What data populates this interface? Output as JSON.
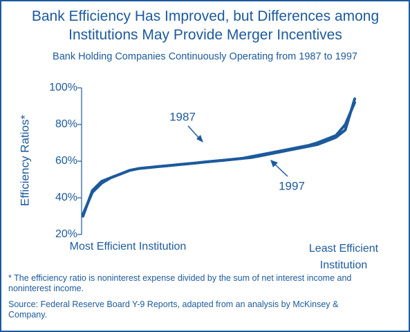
{
  "chart_data": {
    "type": "line",
    "title": "Bank Efficiency Has Improved, but Differences among Institutions May Provide Merger Incentives",
    "subtitle": "Bank Holding Companies Continuously Operating from 1987 to 1997",
    "y_label": "Efficiency Ratios*",
    "x_label_left": "Most Efficient Institution",
    "x_label_right": "Least Efficient Institution",
    "ylim": [
      20,
      100
    ],
    "yticks": [
      {
        "value": 20,
        "label": "20%"
      },
      {
        "value": 40,
        "label": "40%"
      },
      {
        "value": 60,
        "label": "60%"
      },
      {
        "value": 80,
        "label": "80%"
      },
      {
        "value": 100,
        "label": "100%"
      }
    ],
    "series": [
      {
        "name": "1987",
        "color": "#1c5a9c",
        "values": [
          30,
          44,
          49,
          51,
          53,
          55,
          56,
          56.5,
          57,
          57.5,
          58,
          58.5,
          59,
          59.5,
          60,
          60.5,
          61,
          61.5,
          62,
          63,
          64,
          65,
          66,
          67,
          68,
          69,
          71,
          73,
          77,
          94
        ]
      },
      {
        "name": "1997",
        "color": "#1c5a9c",
        "values": [
          31,
          43,
          48,
          51,
          53,
          55,
          56,
          56.5,
          57,
          57.5,
          58,
          58.5,
          59,
          59.5,
          60,
          60.5,
          61,
          61.5,
          62.5,
          63.5,
          64.5,
          65.5,
          66.5,
          67.5,
          68.5,
          70,
          72,
          74,
          80,
          92
        ]
      }
    ],
    "footnote": "* The efficiency ratio is noninterest expense divided by the sum of net interest income and noninterest income.",
    "source": "Source: Federal Reserve Board Y-9 Reports, adapted from an analysis by McKinsey & Company."
  }
}
